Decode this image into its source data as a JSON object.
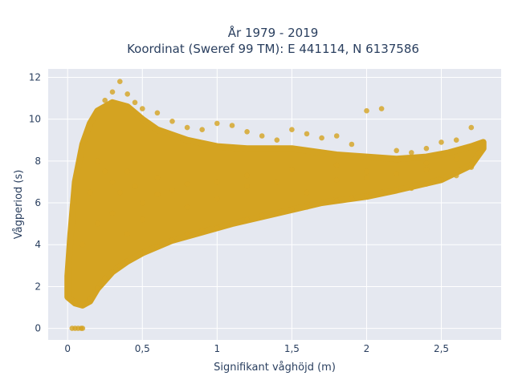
{
  "chart_data": {
    "type": "scatter",
    "title": "År 1979 - 2019",
    "subtitle": "Koordinat (Sweref 99 TM): E 441114, N 6137586",
    "xlabel": "Signifikant våghöjd (m)",
    "ylabel": "Vågperiod (s)",
    "xlim": [
      -0.13,
      2.9
    ],
    "ylim": [
      -0.55,
      12.4
    ],
    "x_ticks": [
      {
        "value": 0,
        "label": "0"
      },
      {
        "value": 0.5,
        "label": "0,5"
      },
      {
        "value": 1,
        "label": "1"
      },
      {
        "value": 1.5,
        "label": "1,5"
      },
      {
        "value": 2,
        "label": "2"
      },
      {
        "value": 2.5,
        "label": "2,5"
      }
    ],
    "y_ticks": [
      {
        "value": 0,
        "label": "0"
      },
      {
        "value": 2,
        "label": "2"
      },
      {
        "value": 4,
        "label": "4"
      },
      {
        "value": 6,
        "label": "6"
      },
      {
        "value": 8,
        "label": "8"
      },
      {
        "value": 10,
        "label": "10"
      },
      {
        "value": 12,
        "label": "12"
      }
    ],
    "grid": true,
    "marker_color": "#D4A321",
    "plot_background": "#E5E8F0",
    "series": [
      {
        "x": [
          0.05,
          0.1,
          0.15,
          0.2,
          0.25,
          0.3,
          0.35,
          0.4,
          0.5,
          0.6,
          0.7,
          0.8,
          0.9,
          1.0,
          1.1,
          1.2,
          1.3,
          1.4,
          1.5,
          1.6,
          1.7,
          1.8,
          1.9,
          2.0,
          2.1,
          2.2,
          2.3,
          2.4,
          2.5,
          2.6,
          2.7,
          2.75,
          0.03,
          0.05,
          0.07,
          0.09,
          0.1,
          0.25,
          0.3,
          0.35,
          0.4,
          0.45,
          0.5,
          0.6,
          0.7,
          0.8,
          0.9,
          1.0,
          1.1,
          1.2,
          1.3,
          1.4,
          1.5,
          1.6,
          1.7,
          1.8,
          1.9,
          2.0,
          2.1,
          2.2,
          2.3,
          2.4,
          2.5,
          2.6,
          2.7,
          0.15,
          0.2,
          0.25,
          0.3,
          0.35,
          0.4,
          0.45,
          0.5,
          0.6,
          0.7,
          0.8,
          1.0,
          1.2,
          1.5,
          1.8,
          2.0,
          2.4,
          0.1,
          0.2,
          0.3,
          0.4,
          0.5,
          0.6,
          0.8,
          1.0,
          1.2,
          1.4,
          1.6,
          1.8,
          2.0,
          2.2,
          2.4,
          2.6
        ],
        "y": [
          1.3,
          1.2,
          1.4,
          1.9,
          2.4,
          2.7,
          3.0,
          3.2,
          3.6,
          3.9,
          4.2,
          4.5,
          4.7,
          4.8,
          5.0,
          5.2,
          5.4,
          5.5,
          5.7,
          5.8,
          6.0,
          6.1,
          6.2,
          6.3,
          6.5,
          6.6,
          6.7,
          6.9,
          7.1,
          7.3,
          7.7,
          8.4,
          0.0,
          0.0,
          0.0,
          0.0,
          0.0,
          10.9,
          11.3,
          11.8,
          11.2,
          10.8,
          10.5,
          10.3,
          9.9,
          9.6,
          9.5,
          9.8,
          9.7,
          9.4,
          9.2,
          9.0,
          9.5,
          9.3,
          9.1,
          9.2,
          8.8,
          10.4,
          10.5,
          8.5,
          8.4,
          8.6,
          8.9,
          9.0,
          9.6,
          6.5,
          8.0,
          7.5,
          7.0,
          6.5,
          7.5,
          6.8,
          6.0,
          7.2,
          6.6,
          6.9,
          7.0,
          7.3,
          7.6,
          7.8,
          7.5,
          7.9,
          4.0,
          5.0,
          5.5,
          4.5,
          5.2,
          6.4,
          5.8,
          6.2,
          6.8,
          7.0,
          6.5,
          7.1,
          7.2,
          7.4,
          7.6,
          8.1
        ]
      }
    ]
  }
}
